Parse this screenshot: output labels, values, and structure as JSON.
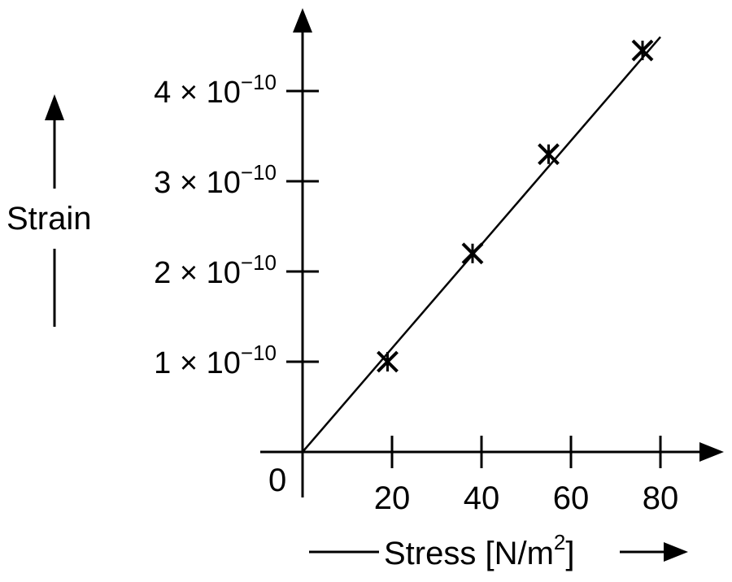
{
  "chart_data": {
    "type": "scatter",
    "xlabel": "Stress [N/m",
    "xlabel_sup": "2",
    "xlabel_close": "]",
    "ylabel": "Strain",
    "origin_label": "0",
    "x_ticks": [
      {
        "value": 20,
        "label": "20"
      },
      {
        "value": 40,
        "label": "40"
      },
      {
        "value": 60,
        "label": "60"
      },
      {
        "value": 80,
        "label": "80"
      }
    ],
    "y_ticks": [
      {
        "value": 1,
        "mantissa": "1 × 10",
        "exp": "−10"
      },
      {
        "value": 2,
        "mantissa": "2 × 10",
        "exp": "−10"
      },
      {
        "value": 3,
        "mantissa": "3 × 10",
        "exp": "−10"
      },
      {
        "value": 4,
        "mantissa": "4 × 10",
        "exp": "−10"
      }
    ],
    "y_unit": "1e-10",
    "xlim": [
      0,
      80
    ],
    "ylim": [
      0,
      4
    ],
    "points": [
      {
        "x": 19,
        "y": 1.0
      },
      {
        "x": 38,
        "y": 2.2
      },
      {
        "x": 55,
        "y": 3.3
      },
      {
        "x": 76,
        "y": 4.45
      }
    ],
    "fit_line": {
      "from": [
        0,
        0
      ],
      "to": [
        80,
        4.6
      ]
    },
    "marker": "asterisk",
    "grid": false
  }
}
